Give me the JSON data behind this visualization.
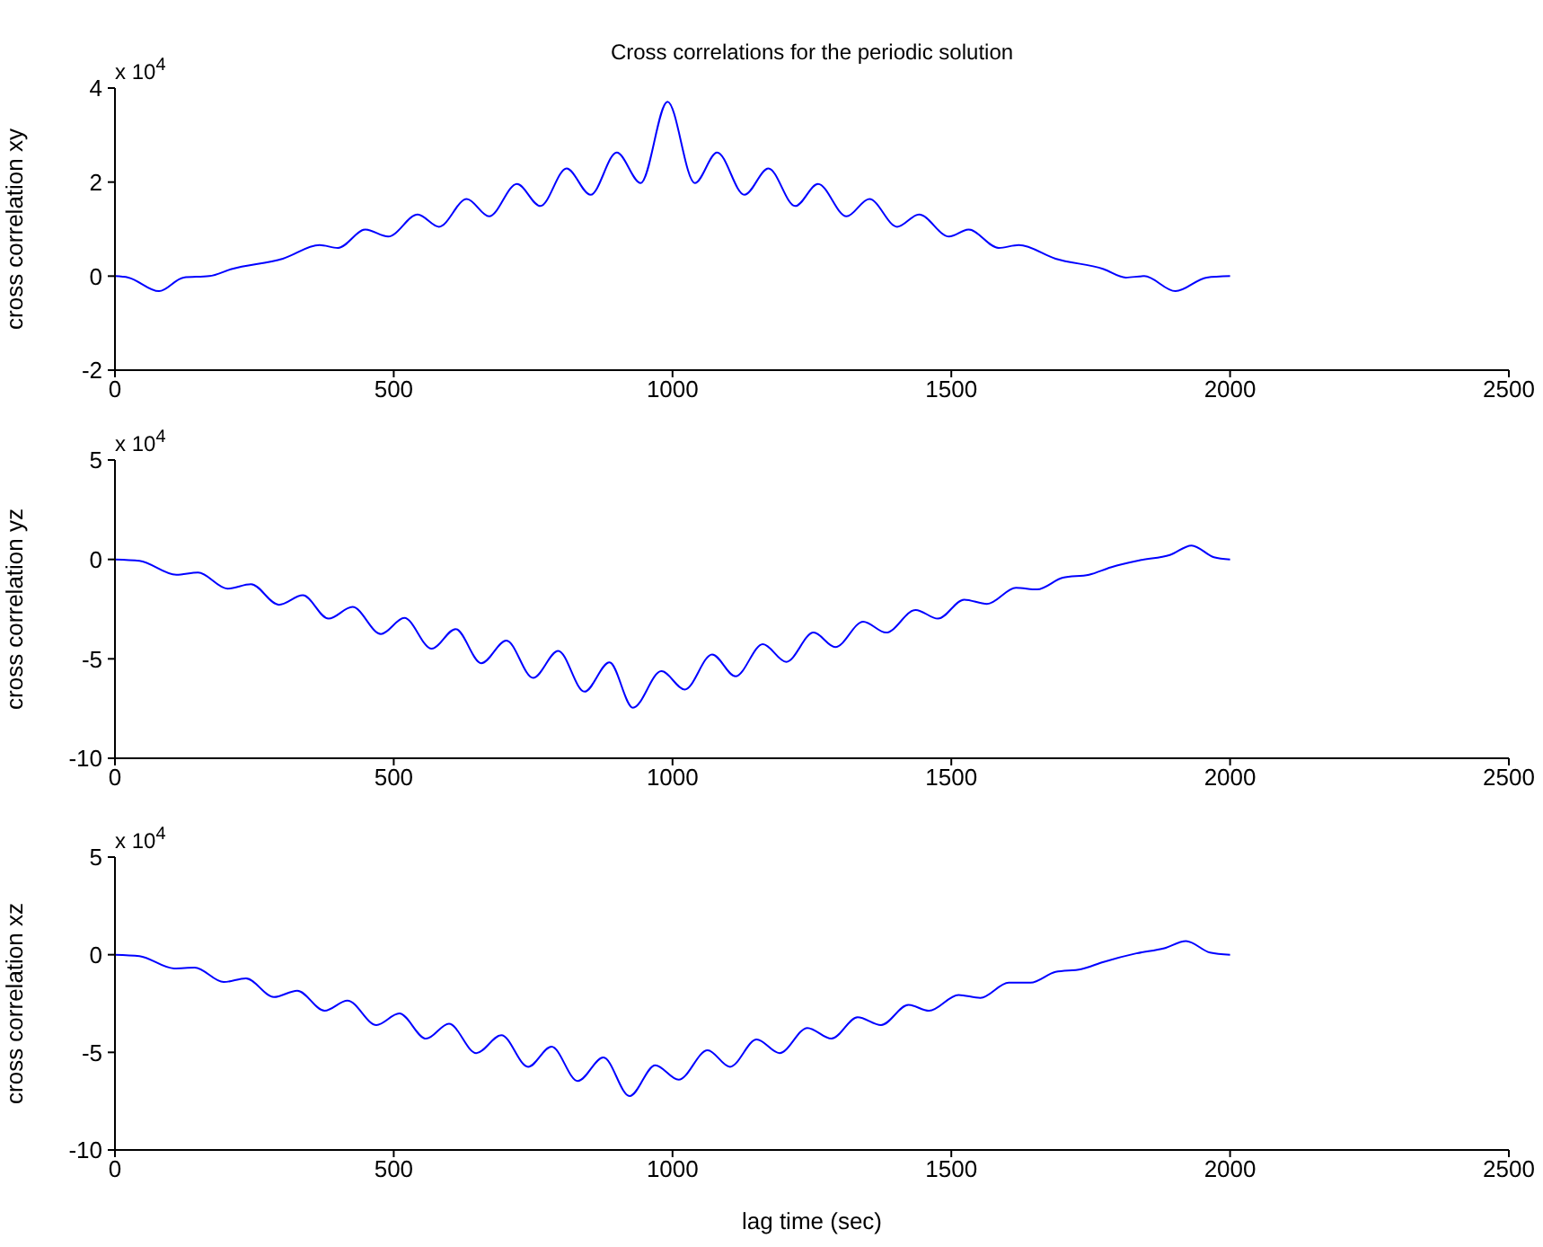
{
  "chart_data": [
    {
      "type": "line",
      "title": "Cross correlations for the periodic solution",
      "ylabel": "cross correlation xy",
      "annotations": [
        "x 10$^{4}$"
      ],
      "color": "#0000ff",
      "xlim": [
        0,
        2500
      ],
      "xticks": [
        0,
        500,
        1000,
        1500,
        2000,
        2500
      ],
      "ylim": [
        -2,
        4
      ],
      "yticks": [
        -2,
        0,
        2,
        4
      ],
      "x": [
        0,
        24,
        79,
        123,
        169,
        209,
        301,
        367,
        400,
        449,
        490,
        543,
        581,
        631,
        671,
        721,
        763,
        810,
        853,
        900,
        943,
        991,
        1040,
        1080,
        1129,
        1172,
        1220,
        1261,
        1312,
        1353,
        1403,
        1442,
        1496,
        1531,
        1585,
        1621,
        1687,
        1773,
        1813,
        1846,
        1902,
        1958,
        2000
      ],
      "values": [
        0,
        -0.03,
        -0.32,
        -0.03,
        0,
        0.15,
        0.37,
        0.66,
        0.6,
        0.99,
        0.84,
        1.31,
        1.05,
        1.64,
        1.27,
        1.96,
        1.49,
        2.29,
        1.73,
        2.63,
        1.98,
        3.71,
        1.98,
        2.63,
        1.73,
        2.29,
        1.49,
        1.96,
        1.27,
        1.64,
        1.05,
        1.31,
        0.84,
        0.99,
        0.6,
        0.66,
        0.37,
        0.15,
        -0.03,
        0,
        -0.32,
        -0.03,
        0
      ]
    },
    {
      "type": "line",
      "ylabel": "cross correlation yz",
      "annotations": [
        "x 10$^{4}$"
      ],
      "color": "#0000ff",
      "xlim": [
        0,
        2500
      ],
      "xticks": [
        0,
        500,
        1000,
        1500,
        2000,
        2500
      ],
      "ylim": [
        -10,
        5
      ],
      "yticks": [
        -10,
        -5,
        0,
        5
      ],
      "x": [
        0,
        44,
        110,
        149,
        202,
        244,
        294,
        337,
        383,
        426,
        477,
        519,
        568,
        611,
        657,
        702,
        750,
        795,
        842,
        887,
        929,
        980,
        1022,
        1071,
        1113,
        1162,
        1204,
        1253,
        1292,
        1342,
        1383,
        1436,
        1476,
        1523,
        1564,
        1616,
        1654,
        1700,
        1747,
        1786,
        1839,
        1892,
        1931,
        1971,
        2000
      ],
      "values": [
        0,
        -0.07,
        -0.77,
        -0.66,
        -1.47,
        -1.25,
        -2.28,
        -1.8,
        -2.98,
        -2.39,
        -3.75,
        -2.94,
        -4.49,
        -3.5,
        -5.22,
        -4.08,
        -5.96,
        -4.6,
        -6.65,
        -5.18,
        -7.46,
        -5.62,
        -6.54,
        -4.78,
        -5.88,
        -4.26,
        -5.15,
        -3.68,
        -4.41,
        -3.13,
        -3.68,
        -2.54,
        -2.98,
        -2.02,
        -2.24,
        -1.43,
        -1.51,
        -0.92,
        -0.77,
        -0.4,
        -0.04,
        0.22,
        0.7,
        0.11,
        0
      ]
    },
    {
      "type": "line",
      "xlabel": "lag time (sec)",
      "ylabel": "cross correlation xz",
      "annotations": [
        "x 10$^{4}$"
      ],
      "color": "#0000ff",
      "xlim": [
        0,
        2500
      ],
      "xticks": [
        0,
        500,
        1000,
        1500,
        2000,
        2500
      ],
      "ylim": [
        -10,
        5
      ],
      "yticks": [
        -10,
        -5,
        0,
        5
      ],
      "x": [
        0,
        44,
        106,
        143,
        195,
        235,
        285,
        327,
        376,
        417,
        469,
        510,
        558,
        599,
        648,
        693,
        741,
        783,
        830,
        876,
        923,
        969,
        1011,
        1063,
        1103,
        1151,
        1192,
        1242,
        1285,
        1332,
        1374,
        1423,
        1460,
        1513,
        1552,
        1603,
        1642,
        1687,
        1733,
        1773,
        1832,
        1882,
        1921,
        1964,
        2000
      ],
      "values": [
        0,
        -0.07,
        -0.7,
        -0.66,
        -1.4,
        -1.21,
        -2.17,
        -1.84,
        -2.87,
        -2.35,
        -3.6,
        -3.01,
        -4.3,
        -3.53,
        -5.04,
        -4.12,
        -5.74,
        -4.71,
        -6.47,
        -5.26,
        -7.24,
        -5.66,
        -6.4,
        -4.89,
        -5.74,
        -4.34,
        -5.04,
        -3.75,
        -4.3,
        -3.2,
        -3.6,
        -2.57,
        -2.87,
        -2.06,
        -2.21,
        -1.43,
        -1.43,
        -0.88,
        -0.74,
        -0.37,
        0.07,
        0.33,
        0.7,
        0.11,
        0
      ]
    }
  ]
}
